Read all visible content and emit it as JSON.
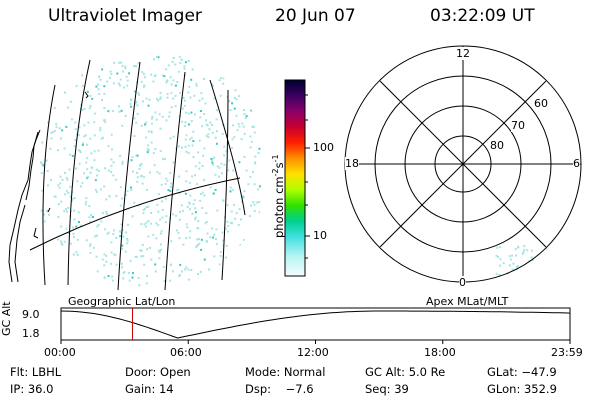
{
  "header": {
    "title": "Ultraviolet Imager",
    "date": "20 Jun 07",
    "time": "03:22:09 UT"
  },
  "colorbar": {
    "unit_prefix": "photon cm",
    "unit_exp1": "-2",
    "unit_mid": "s",
    "unit_exp2": "-1",
    "ticks": [
      "100",
      "10"
    ],
    "colors": [
      "#000033",
      "#2a0050",
      "#5a0077",
      "#8a0070",
      "#b00040",
      "#d80010",
      "#ff3000",
      "#ff8c00",
      "#ffd000",
      "#e0ff00",
      "#80ff00",
      "#00e000",
      "#00d0a0",
      "#40e0e0",
      "#a0f0f0",
      "#d8f8f8",
      "#f4fcfc"
    ]
  },
  "polar": {
    "labels": {
      "top": "12",
      "left": "18",
      "right": "6",
      "bottom": "0"
    },
    "lat_labels": [
      "60",
      "70",
      "80"
    ]
  },
  "altplot": {
    "left_title": "Geographic Lat/Lon",
    "right_title": "Apex MLat/MLT",
    "ylabel": "GC Alt",
    "y_top": "9.0",
    "y_bottom": "1.8",
    "xticks": [
      "00:00",
      "06:00",
      "12:00",
      "18:00",
      "23:59"
    ],
    "marker_hour": 3.37,
    "line_color": "#000000",
    "marker_color": "#cc0000"
  },
  "footer": {
    "row1": [
      "Flt: LBHL",
      "Door: Open",
      "Mode: Normal",
      "GC Alt: 5.0 Re",
      "GLat: −47.9"
    ],
    "row2": [
      "IP: 36.0",
      "Gain: 14",
      "Dsp:    −7.6",
      "Seq: 39",
      "GLon: 352.9"
    ]
  },
  "colors": {
    "speckle": "#a8e4e4",
    "speckle_bright": "#3cc8c8"
  }
}
